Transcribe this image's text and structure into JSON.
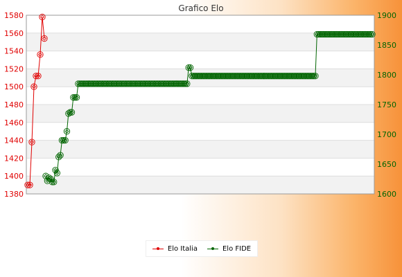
{
  "chart_data": {
    "type": "line",
    "title": "Grafico Elo",
    "left_axis": {
      "ylim": [
        1380,
        1580
      ],
      "ticks": [
        1380,
        1400,
        1420,
        1440,
        1460,
        1480,
        1500,
        1520,
        1540,
        1560,
        1580
      ],
      "color": "#e00000"
    },
    "right_axis": {
      "ylim": [
        1600,
        1900
      ],
      "ticks": [
        1600,
        1650,
        1700,
        1750,
        1800,
        1850,
        1900
      ],
      "color": "#006400"
    },
    "grid": true,
    "legend_position": "bottom",
    "series": [
      {
        "name": "Elo Italia",
        "axis": "left",
        "color": "#e00000",
        "values": [
          1390,
          1390,
          1438,
          1500,
          1512,
          1512,
          1536,
          1578,
          1554
        ]
      },
      {
        "name": "Elo FIDE",
        "axis": "right",
        "color": "#006400",
        "values": [
          1630,
          1622,
          1627,
          1625,
          1620,
          1620,
          1640,
          1635,
          1662,
          1665,
          1690,
          1690,
          1690,
          1705,
          1735,
          1737,
          1737,
          1762,
          1762,
          1762,
          1785,
          1785,
          1785,
          1785,
          1785,
          1785,
          1785,
          1785,
          1785,
          1785,
          1785,
          1785,
          1785,
          1785,
          1785,
          1785,
          1785,
          1785,
          1785,
          1785,
          1785,
          1785,
          1785,
          1785,
          1785,
          1785,
          1785,
          1785,
          1785,
          1785,
          1785,
          1785,
          1785,
          1785,
          1785,
          1785,
          1785,
          1785,
          1785,
          1785,
          1785,
          1785,
          1785,
          1785,
          1785,
          1785,
          1785,
          1785,
          1785,
          1785,
          1785,
          1785,
          1785,
          1785,
          1785,
          1785,
          1785,
          1785,
          1785,
          1785,
          1785,
          1785,
          1785,
          1785,
          1785,
          1785,
          1785,
          1785,
          1812,
          1812,
          1798,
          1798,
          1798,
          1798,
          1798,
          1798,
          1798,
          1798,
          1798,
          1798,
          1798,
          1798,
          1798,
          1798,
          1798,
          1798,
          1798,
          1798,
          1798,
          1798,
          1798,
          1798,
          1798,
          1798,
          1798,
          1798,
          1798,
          1798,
          1798,
          1798,
          1798,
          1798,
          1798,
          1798,
          1798,
          1798,
          1798,
          1798,
          1798,
          1798,
          1798,
          1798,
          1798,
          1798,
          1798,
          1798,
          1798,
          1798,
          1798,
          1798,
          1798,
          1798,
          1798,
          1798,
          1798,
          1798,
          1798,
          1798,
          1798,
          1798,
          1798,
          1798,
          1798,
          1798,
          1798,
          1798,
          1798,
          1798,
          1798,
          1798,
          1798,
          1798,
          1798,
          1798,
          1798,
          1798,
          1798,
          1868,
          1868,
          1868,
          1868,
          1868,
          1868,
          1868,
          1868,
          1868,
          1868,
          1868,
          1868,
          1868,
          1868,
          1868,
          1868,
          1868,
          1868,
          1868,
          1868,
          1868,
          1868,
          1868,
          1868,
          1868,
          1868,
          1868,
          1868,
          1868,
          1868,
          1868,
          1868,
          1868,
          1868,
          1868
        ]
      }
    ]
  }
}
